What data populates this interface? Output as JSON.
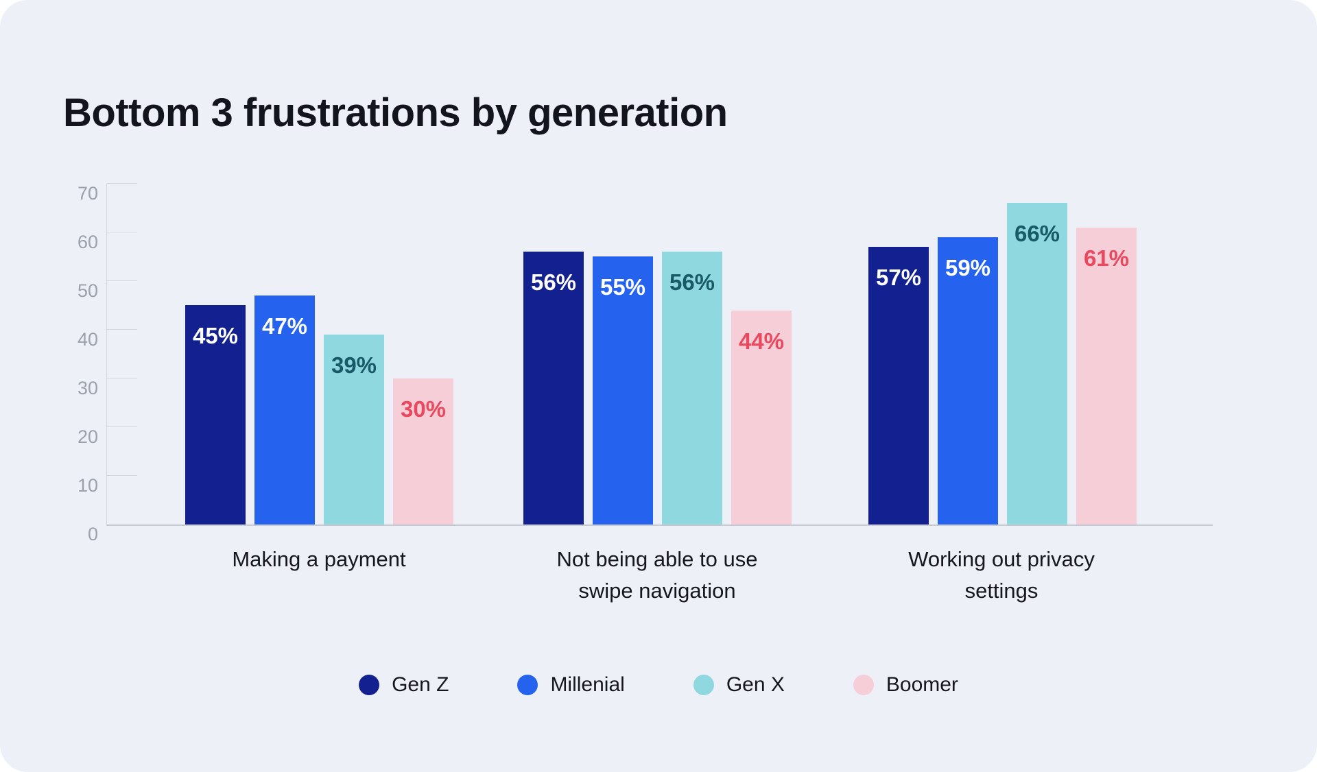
{
  "chart_data": {
    "type": "bar",
    "title": "Bottom 3 frustrations by generation",
    "categories": [
      "Making a payment",
      "Not being able to use swipe navigation",
      "Working out privacy settings"
    ],
    "series": [
      {
        "name": "Gen Z",
        "color": "#13208f",
        "label_color": "#ffffff",
        "values": [
          45,
          56,
          57
        ]
      },
      {
        "name": "Millenial",
        "color": "#2563ee",
        "label_color": "#ffffff",
        "values": [
          47,
          55,
          59
        ]
      },
      {
        "name": "Gen X",
        "color": "#90d8e0",
        "label_color": "#175966",
        "values": [
          39,
          56,
          66
        ]
      },
      {
        "name": "Boomer",
        "color": "#f5ced7",
        "label_color": "#e9495f",
        "values": [
          30,
          44,
          61
        ]
      }
    ],
    "value_suffix": "%",
    "value_labels": [
      [
        "45%",
        "56%",
        "57%"
      ],
      [
        "47%",
        "55%",
        "59%"
      ],
      [
        "39%",
        "56%",
        "66%"
      ],
      [
        "30%",
        "44%",
        "61%"
      ]
    ],
    "yticks": [
      0,
      10,
      20,
      30,
      40,
      50,
      60,
      70
    ],
    "ylim": [
      0,
      70
    ],
    "xlabel": "",
    "ylabel": "",
    "grid": "y-axis tick marks only, no gridlines across plot",
    "legend_position": "bottom",
    "background_color": "#edf1f7",
    "axis_color": "#c5c9d2",
    "tick_label_color": "#9aa1ad",
    "title_color": "#14141e",
    "category_label_color": "#16161f"
  }
}
